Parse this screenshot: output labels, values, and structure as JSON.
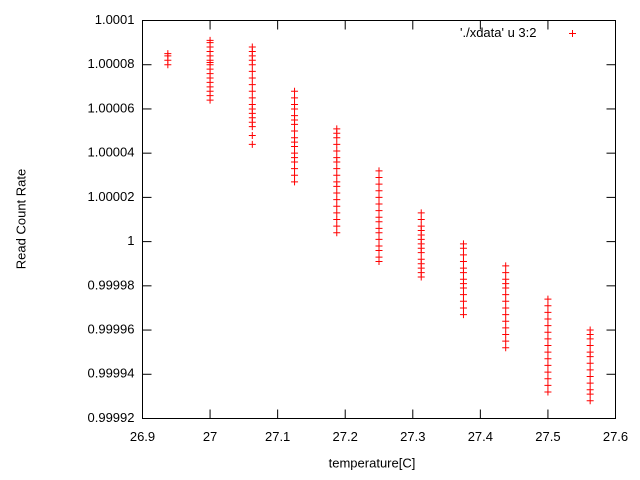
{
  "chart_data": {
    "type": "scatter",
    "xlabel": "temperature[C]",
    "ylabel": "Read Count Rate",
    "xlim": [
      26.9,
      27.6
    ],
    "xticks": [
      26.9,
      27,
      27.1,
      27.2,
      27.3,
      27.4,
      27.5,
      27.6
    ],
    "ylim": [
      0.99992,
      1.0001
    ],
    "yticks": [
      0.99992,
      0.99994,
      0.99996,
      0.99998,
      1,
      1.00002,
      1.00004,
      1.00006,
      1.00008,
      1.0001
    ],
    "legend": "top-right",
    "marker": "+",
    "x": [
      26.9375,
      26.9375,
      26.9375,
      26.9375,
      27,
      27,
      27,
      27,
      27,
      27,
      27,
      27,
      27,
      27,
      27,
      27,
      27,
      27,
      27,
      27,
      27.0625,
      27.0625,
      27.0625,
      27.0625,
      27.0625,
      27.0625,
      27.0625,
      27.0625,
      27.0625,
      27.0625,
      27.0625,
      27.0625,
      27.0625,
      27.0625,
      27.0625,
      27.0625,
      27.0625,
      27.0625,
      27.125,
      27.125,
      27.125,
      27.125,
      27.125,
      27.125,
      27.125,
      27.125,
      27.125,
      27.125,
      27.125,
      27.125,
      27.125,
      27.125,
      27.125,
      27.125,
      27.125,
      27.1875,
      27.1875,
      27.1875,
      27.1875,
      27.1875,
      27.1875,
      27.1875,
      27.1875,
      27.1875,
      27.1875,
      27.1875,
      27.1875,
      27.1875,
      27.1875,
      27.1875,
      27.1875,
      27.1875,
      27.1875,
      27.25,
      27.25,
      27.25,
      27.25,
      27.25,
      27.25,
      27.25,
      27.25,
      27.25,
      27.25,
      27.25,
      27.25,
      27.25,
      27.25,
      27.25,
      27.25,
      27.3125,
      27.3125,
      27.3125,
      27.3125,
      27.3125,
      27.3125,
      27.3125,
      27.3125,
      27.3125,
      27.3125,
      27.3125,
      27.3125,
      27.3125,
      27.3125,
      27.375,
      27.375,
      27.375,
      27.375,
      27.375,
      27.375,
      27.375,
      27.375,
      27.375,
      27.375,
      27.375,
      27.375,
      27.375,
      27.4375,
      27.4375,
      27.4375,
      27.4375,
      27.4375,
      27.4375,
      27.4375,
      27.4375,
      27.4375,
      27.4375,
      27.4375,
      27.4375,
      27.4375,
      27.4375,
      27.5,
      27.5,
      27.5,
      27.5,
      27.5,
      27.5,
      27.5,
      27.5,
      27.5,
      27.5,
      27.5,
      27.5,
      27.5,
      27.5,
      27.5,
      27.5625,
      27.5625,
      27.5625,
      27.5625,
      27.5625,
      27.5625,
      27.5625,
      27.5625,
      27.5625,
      27.5625,
      27.5625,
      27.5625,
      27.5625
    ],
    "series": [
      {
        "name": "'./xdata' u 3:2",
        "color": "#ff0000",
        "values": [
          1.00008,
          1.000082,
          1.000084,
          1.000085,
          1.000064,
          1.000066,
          1.000068,
          1.00007,
          1.000072,
          1.000074,
          1.000076,
          1.000078,
          1.00008,
          1.000081,
          1.000082,
          1.000084,
          1.000086,
          1.000088,
          1.00009,
          1.000091,
          1.000044,
          1.000048,
          1.000052,
          1.000054,
          1.000056,
          1.000058,
          1.00006,
          1.000062,
          1.000065,
          1.000068,
          1.000071,
          1.000074,
          1.000077,
          1.00008,
          1.000082,
          1.000084,
          1.000086,
          1.000088,
          1.000027,
          1.00003,
          1.000033,
          1.000036,
          1.000038,
          1.00004,
          1.000043,
          1.000045,
          1.000047,
          1.00005,
          1.000053,
          1.000055,
          1.000057,
          1.00006,
          1.000062,
          1.000065,
          1.000068,
          1.000004,
          1.000007,
          1.00001,
          1.000013,
          1.000016,
          1.000019,
          1.000022,
          1.000025,
          1.000027,
          1.00003,
          1.000033,
          1.000036,
          1.000038,
          1.000041,
          1.000044,
          1.000047,
          1.000049,
          1.000051,
          0.999991,
          0.999993,
          0.999996,
          0.999998,
          1.000001,
          1.000004,
          1.000006,
          1.000009,
          1.000011,
          1.000014,
          1.000017,
          1.00002,
          1.000023,
          1.000026,
          1.000029,
          1.000032,
          0.999984,
          0.999986,
          0.999988,
          0.99999,
          0.999992,
          0.999995,
          0.999997,
          0.999999,
          1.000001,
          1.000003,
          1.000005,
          1.000007,
          1.00001,
          1.000013,
          0.999967,
          0.99997,
          0.999973,
          0.999976,
          0.999979,
          0.999981,
          0.999983,
          0.999986,
          0.999988,
          0.999991,
          0.999994,
          0.999997,
          0.999999,
          0.999952,
          0.999955,
          0.999958,
          0.999961,
          0.999964,
          0.999967,
          0.99997,
          0.999973,
          0.999976,
          0.999979,
          0.999981,
          0.999983,
          0.999986,
          0.999989,
          0.999932,
          0.999935,
          0.999938,
          0.999941,
          0.999944,
          0.999947,
          0.99995,
          0.999953,
          0.999956,
          0.999959,
          0.999962,
          0.999965,
          0.999968,
          0.999971,
          0.999974,
          0.999928,
          0.999931,
          0.999933,
          0.999936,
          0.999939,
          0.999942,
          0.999945,
          0.999948,
          0.99995,
          0.999953,
          0.999956,
          0.999958,
          0.99996
        ]
      }
    ]
  }
}
